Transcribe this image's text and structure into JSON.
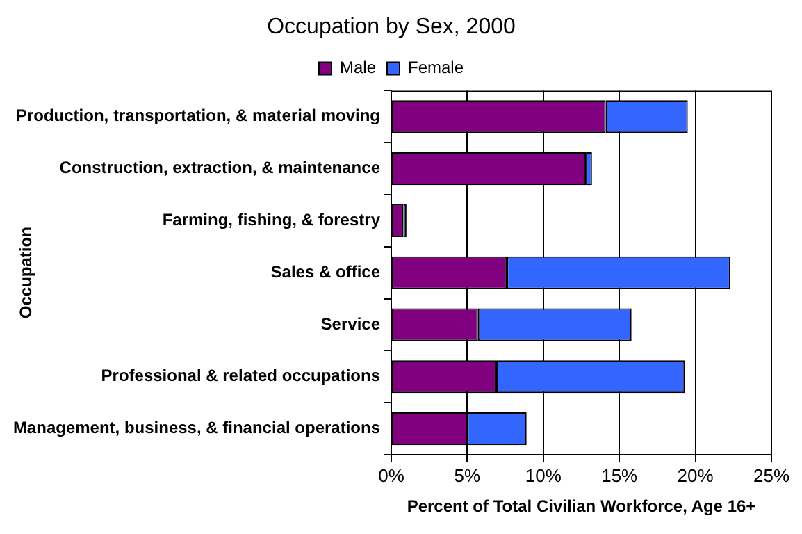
{
  "chart_data": {
    "type": "bar",
    "orientation": "horizontal",
    "stacked": true,
    "title": "Occupation by Sex, 2000",
    "xlabel": "Percent of Total Civilian Workforce, Age 16+",
    "ylabel": "Occupation",
    "categories": [
      "Production, transportation, & material moving",
      "Construction, extraction, & maintenance",
      "Farming, fishing, & forestry",
      "Sales & office",
      "Service",
      "Professional & related occupations",
      "Management, business, & financial operations"
    ],
    "series": [
      {
        "name": "Male",
        "color": "#800080",
        "values": [
          14.1,
          12.8,
          0.8,
          7.6,
          5.7,
          6.9,
          5.0
        ]
      },
      {
        "name": "Female",
        "color": "#3366ff",
        "values": [
          5.4,
          0.4,
          0.2,
          14.7,
          10.1,
          12.4,
          3.9
        ]
      }
    ],
    "xlim": [
      0,
      25
    ],
    "xticks": [
      {
        "value": 0,
        "label": "0%"
      },
      {
        "value": 5,
        "label": "5%"
      },
      {
        "value": 10,
        "label": "10%"
      },
      {
        "value": 15,
        "label": "15%"
      },
      {
        "value": 20,
        "label": "20%"
      },
      {
        "value": 25,
        "label": "25%"
      }
    ],
    "grid": "x",
    "legend": "top"
  }
}
